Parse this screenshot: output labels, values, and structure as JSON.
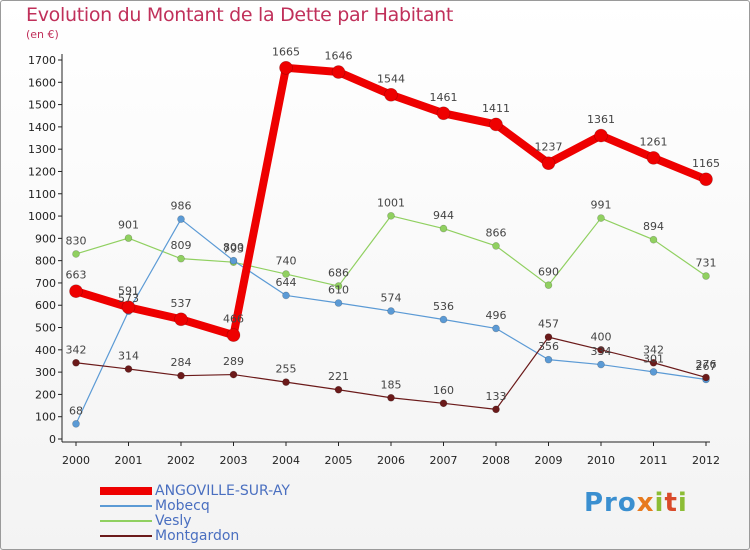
{
  "header": {
    "title": "Evolution du Montant de la Dette par Habitant",
    "subtitle": "(en €)"
  },
  "logo": {
    "text": "Proxiti"
  },
  "colors": {
    "axis": "#222222",
    "grid": "#cccccc",
    "title": "#c0305a",
    "legend_text": "#4a6fc0"
  },
  "chart_data": {
    "type": "line",
    "title": "Evolution du Montant de la Dette par Habitant",
    "subtitle": "(en €)",
    "xlabel": "",
    "ylabel": "",
    "ylim": [
      0,
      1700
    ],
    "ytick_step": 100,
    "grid": false,
    "legend_position": "bottom-left",
    "categories": [
      "2000",
      "2001",
      "2002",
      "2003",
      "2004",
      "2005",
      "2006",
      "2007",
      "2008",
      "2009",
      "2010",
      "2011",
      "2012"
    ],
    "series": [
      {
        "name": "Vesly",
        "color": "#90d060",
        "width": 1.2,
        "dot": 3.5,
        "values": [
          830,
          901,
          809,
          793,
          740,
          686,
          1001,
          944,
          866,
          690,
          991,
          894,
          731
        ]
      },
      {
        "name": "Mobecq",
        "color": "#5b9ad5",
        "width": 1.2,
        "dot": 3.5,
        "values": [
          68,
          573,
          986,
          800,
          644,
          610,
          574,
          536,
          496,
          356,
          334,
          301,
          267
        ]
      },
      {
        "name": "Montgardon",
        "color": "#6b1a1a",
        "width": 1.2,
        "dot": 3.5,
        "values": [
          342,
          314,
          284,
          289,
          255,
          221,
          185,
          160,
          133,
          457,
          400,
          342,
          276
        ]
      },
      {
        "name": "ANGOVILLE-SUR-AY",
        "color": "#ee0000",
        "width": 8,
        "dot": 6.5,
        "values": [
          663,
          591,
          537,
          466,
          1665,
          1646,
          1544,
          1461,
          1411,
          1237,
          1361,
          1261,
          1165
        ]
      }
    ],
    "legend_order": [
      "ANGOVILLE-SUR-AY",
      "Mobecq",
      "Vesly",
      "Montgardon"
    ]
  }
}
